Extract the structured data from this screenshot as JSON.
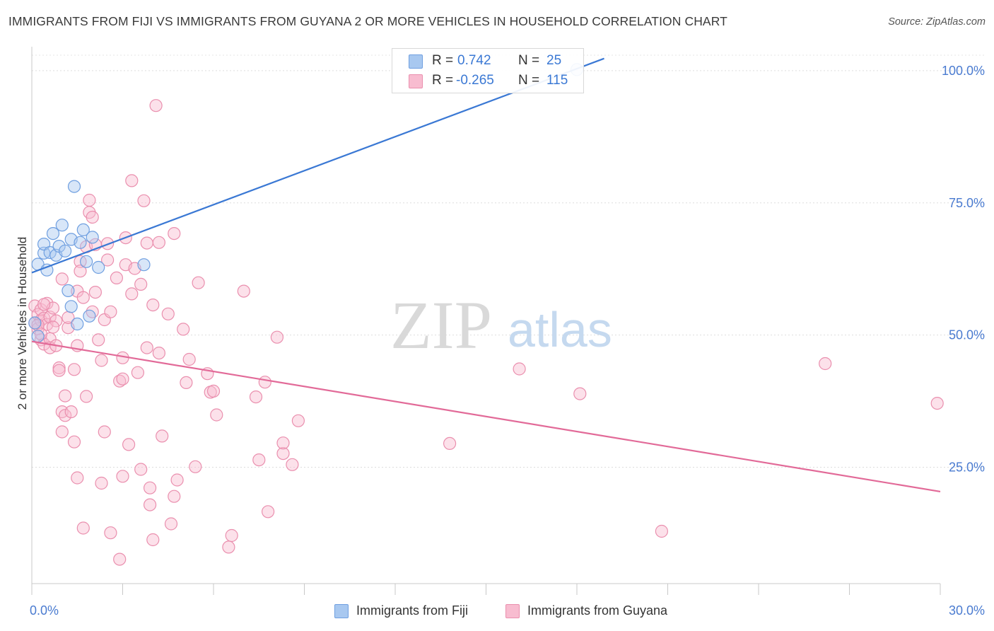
{
  "title": "IMMIGRANTS FROM FIJI VS IMMIGRANTS FROM GUYANA 2 OR MORE VEHICLES IN HOUSEHOLD CORRELATION CHART",
  "source": "Source: ZipAtlas.com",
  "watermark": {
    "zip": "ZIP",
    "atlas": "atlas"
  },
  "legend": {
    "r_label": "R =",
    "n_label": "N =",
    "rows": [
      {
        "r": "0.742",
        "n": "25",
        "color": "#a8c8f0",
        "border": "#6f9fe0"
      },
      {
        "r": "-0.265",
        "n": "115",
        "color": "#f8bcd0",
        "border": "#ea8fae"
      }
    ]
  },
  "bottom_legend": [
    {
      "label": "Immigrants from Fiji",
      "color": "#a8c8f0",
      "border": "#6f9fe0"
    },
    {
      "label": "Immigrants from Guyana",
      "color": "#f8bcd0",
      "border": "#ea8fae"
    }
  ],
  "chart_data": {
    "type": "scatter",
    "xlabel": "",
    "ylabel": "2 or more Vehicles in Household",
    "xlim": [
      0,
      30
    ],
    "ylim": [
      3,
      104
    ],
    "x_tick_labels": [
      {
        "value": 0,
        "label": "0.0%"
      },
      {
        "value": 30,
        "label": "30.0%"
      }
    ],
    "x_minor_ticks": [
      0,
      3,
      6,
      9,
      12,
      15,
      18,
      21,
      24,
      27,
      30
    ],
    "y_ticks": [
      {
        "value": 25,
        "label": "25.0%"
      },
      {
        "value": 50,
        "label": "50.0%"
      },
      {
        "value": 75,
        "label": "75.0%"
      },
      {
        "value": 100,
        "label": "100.0%"
      }
    ],
    "grid": true,
    "legend_position": "top-center",
    "series": [
      {
        "name": "Immigrants from Fiji",
        "color": "#a8c8f0",
        "stroke": "#6f9fe0",
        "line_color": "#3a78d4",
        "trend": {
          "x": [
            0,
            18.9
          ],
          "y": [
            61.8,
            102.3
          ]
        },
        "points": [
          [
            0.2,
            63.4
          ],
          [
            0.4,
            65.5
          ],
          [
            0.4,
            67.2
          ],
          [
            0.5,
            62.3
          ],
          [
            0.6,
            65.6
          ],
          [
            0.7,
            69.2
          ],
          [
            0.8,
            65.1
          ],
          [
            0.9,
            66.8
          ],
          [
            1.0,
            70.8
          ],
          [
            1.1,
            65.9
          ],
          [
            1.2,
            58.4
          ],
          [
            1.3,
            55.4
          ],
          [
            1.3,
            68.1
          ],
          [
            1.4,
            78.1
          ],
          [
            1.5,
            52.1
          ],
          [
            1.6,
            67.5
          ],
          [
            1.7,
            69.9
          ],
          [
            1.8,
            63.9
          ],
          [
            1.9,
            53.6
          ],
          [
            2.0,
            68.5
          ],
          [
            2.2,
            62.8
          ],
          [
            3.7,
            63.3
          ],
          [
            18.0,
            100.2
          ],
          [
            0.1,
            52.3
          ],
          [
            0.2,
            49.8
          ]
        ]
      },
      {
        "name": "Immigrants from Guyana",
        "color": "#f8bcd0",
        "stroke": "#ea8fae",
        "line_color": "#e26a98",
        "trend": {
          "x": [
            0,
            30
          ],
          "y": [
            48.8,
            20.4
          ]
        },
        "points": [
          [
            0.1,
            55.5
          ],
          [
            0.1,
            52.3
          ],
          [
            0.2,
            53.9
          ],
          [
            0.2,
            51.2
          ],
          [
            0.3,
            52.8
          ],
          [
            0.3,
            54.8
          ],
          [
            0.3,
            49.1
          ],
          [
            0.4,
            53.2
          ],
          [
            0.4,
            48.3
          ],
          [
            0.5,
            56.0
          ],
          [
            0.5,
            52.0
          ],
          [
            0.6,
            49.3
          ],
          [
            0.6,
            47.6
          ],
          [
            0.6,
            53.4
          ],
          [
            0.7,
            55.1
          ],
          [
            0.8,
            52.7
          ],
          [
            0.8,
            48.0
          ],
          [
            0.9,
            43.8
          ],
          [
            0.9,
            43.3
          ],
          [
            1.0,
            60.6
          ],
          [
            1.0,
            31.7
          ],
          [
            1.0,
            35.5
          ],
          [
            1.1,
            38.5
          ],
          [
            1.1,
            34.8
          ],
          [
            1.2,
            51.4
          ],
          [
            1.2,
            53.3
          ],
          [
            1.3,
            35.5
          ],
          [
            1.4,
            43.5
          ],
          [
            1.4,
            29.8
          ],
          [
            1.5,
            58.3
          ],
          [
            1.5,
            23.0
          ],
          [
            1.5,
            48.0
          ],
          [
            1.6,
            63.9
          ],
          [
            1.6,
            62.1
          ],
          [
            1.7,
            57.1
          ],
          [
            1.7,
            13.5
          ],
          [
            1.8,
            66.7
          ],
          [
            1.8,
            38.4
          ],
          [
            1.9,
            73.2
          ],
          [
            1.9,
            75.5
          ],
          [
            2.0,
            72.3
          ],
          [
            2.0,
            54.4
          ],
          [
            2.1,
            67.1
          ],
          [
            2.1,
            58.1
          ],
          [
            2.2,
            49.1
          ],
          [
            2.3,
            22.0
          ],
          [
            2.3,
            45.2
          ],
          [
            2.4,
            52.9
          ],
          [
            2.4,
            31.7
          ],
          [
            2.5,
            64.2
          ],
          [
            2.5,
            67.3
          ],
          [
            2.6,
            54.4
          ],
          [
            2.6,
            12.6
          ],
          [
            2.8,
            60.8
          ],
          [
            2.9,
            7.6
          ],
          [
            2.9,
            41.3
          ],
          [
            3.0,
            41.7
          ],
          [
            3.0,
            45.7
          ],
          [
            3.0,
            23.3
          ],
          [
            3.1,
            68.4
          ],
          [
            3.1,
            63.3
          ],
          [
            3.2,
            29.3
          ],
          [
            3.3,
            79.2
          ],
          [
            3.3,
            57.8
          ],
          [
            3.4,
            62.6
          ],
          [
            3.5,
            42.9
          ],
          [
            3.6,
            24.6
          ],
          [
            3.6,
            59.6
          ],
          [
            3.7,
            75.4
          ],
          [
            3.8,
            67.4
          ],
          [
            3.8,
            47.6
          ],
          [
            3.9,
            21.1
          ],
          [
            3.9,
            17.9
          ],
          [
            4.0,
            11.3
          ],
          [
            4.0,
            55.7
          ],
          [
            4.1,
            93.4
          ],
          [
            4.2,
            46.6
          ],
          [
            4.2,
            67.5
          ],
          [
            4.3,
            30.9
          ],
          [
            4.5,
            54.0
          ],
          [
            4.6,
            14.3
          ],
          [
            4.7,
            69.2
          ],
          [
            4.7,
            19.5
          ],
          [
            4.8,
            22.6
          ],
          [
            5.0,
            51.1
          ],
          [
            5.1,
            41.0
          ],
          [
            5.2,
            45.4
          ],
          [
            5.4,
            25.1
          ],
          [
            5.5,
            59.9
          ],
          [
            5.8,
            42.7
          ],
          [
            5.9,
            39.2
          ],
          [
            6.0,
            39.4
          ],
          [
            6.1,
            34.9
          ],
          [
            6.5,
            9.9
          ],
          [
            6.6,
            12.1
          ],
          [
            7.0,
            58.3
          ],
          [
            7.4,
            38.3
          ],
          [
            7.5,
            26.4
          ],
          [
            7.7,
            41.1
          ],
          [
            7.8,
            16.6
          ],
          [
            8.1,
            49.6
          ],
          [
            8.3,
            27.6
          ],
          [
            8.3,
            29.6
          ],
          [
            8.6,
            25.5
          ],
          [
            8.8,
            33.8
          ],
          [
            13.8,
            29.5
          ],
          [
            16.1,
            43.6
          ],
          [
            18.1,
            38.9
          ],
          [
            20.8,
            12.9
          ],
          [
            26.2,
            44.6
          ],
          [
            29.9,
            37.1
          ],
          [
            0.2,
            51.9
          ],
          [
            0.3,
            50.2
          ],
          [
            0.4,
            55.8
          ],
          [
            0.7,
            51.5
          ]
        ]
      }
    ]
  }
}
